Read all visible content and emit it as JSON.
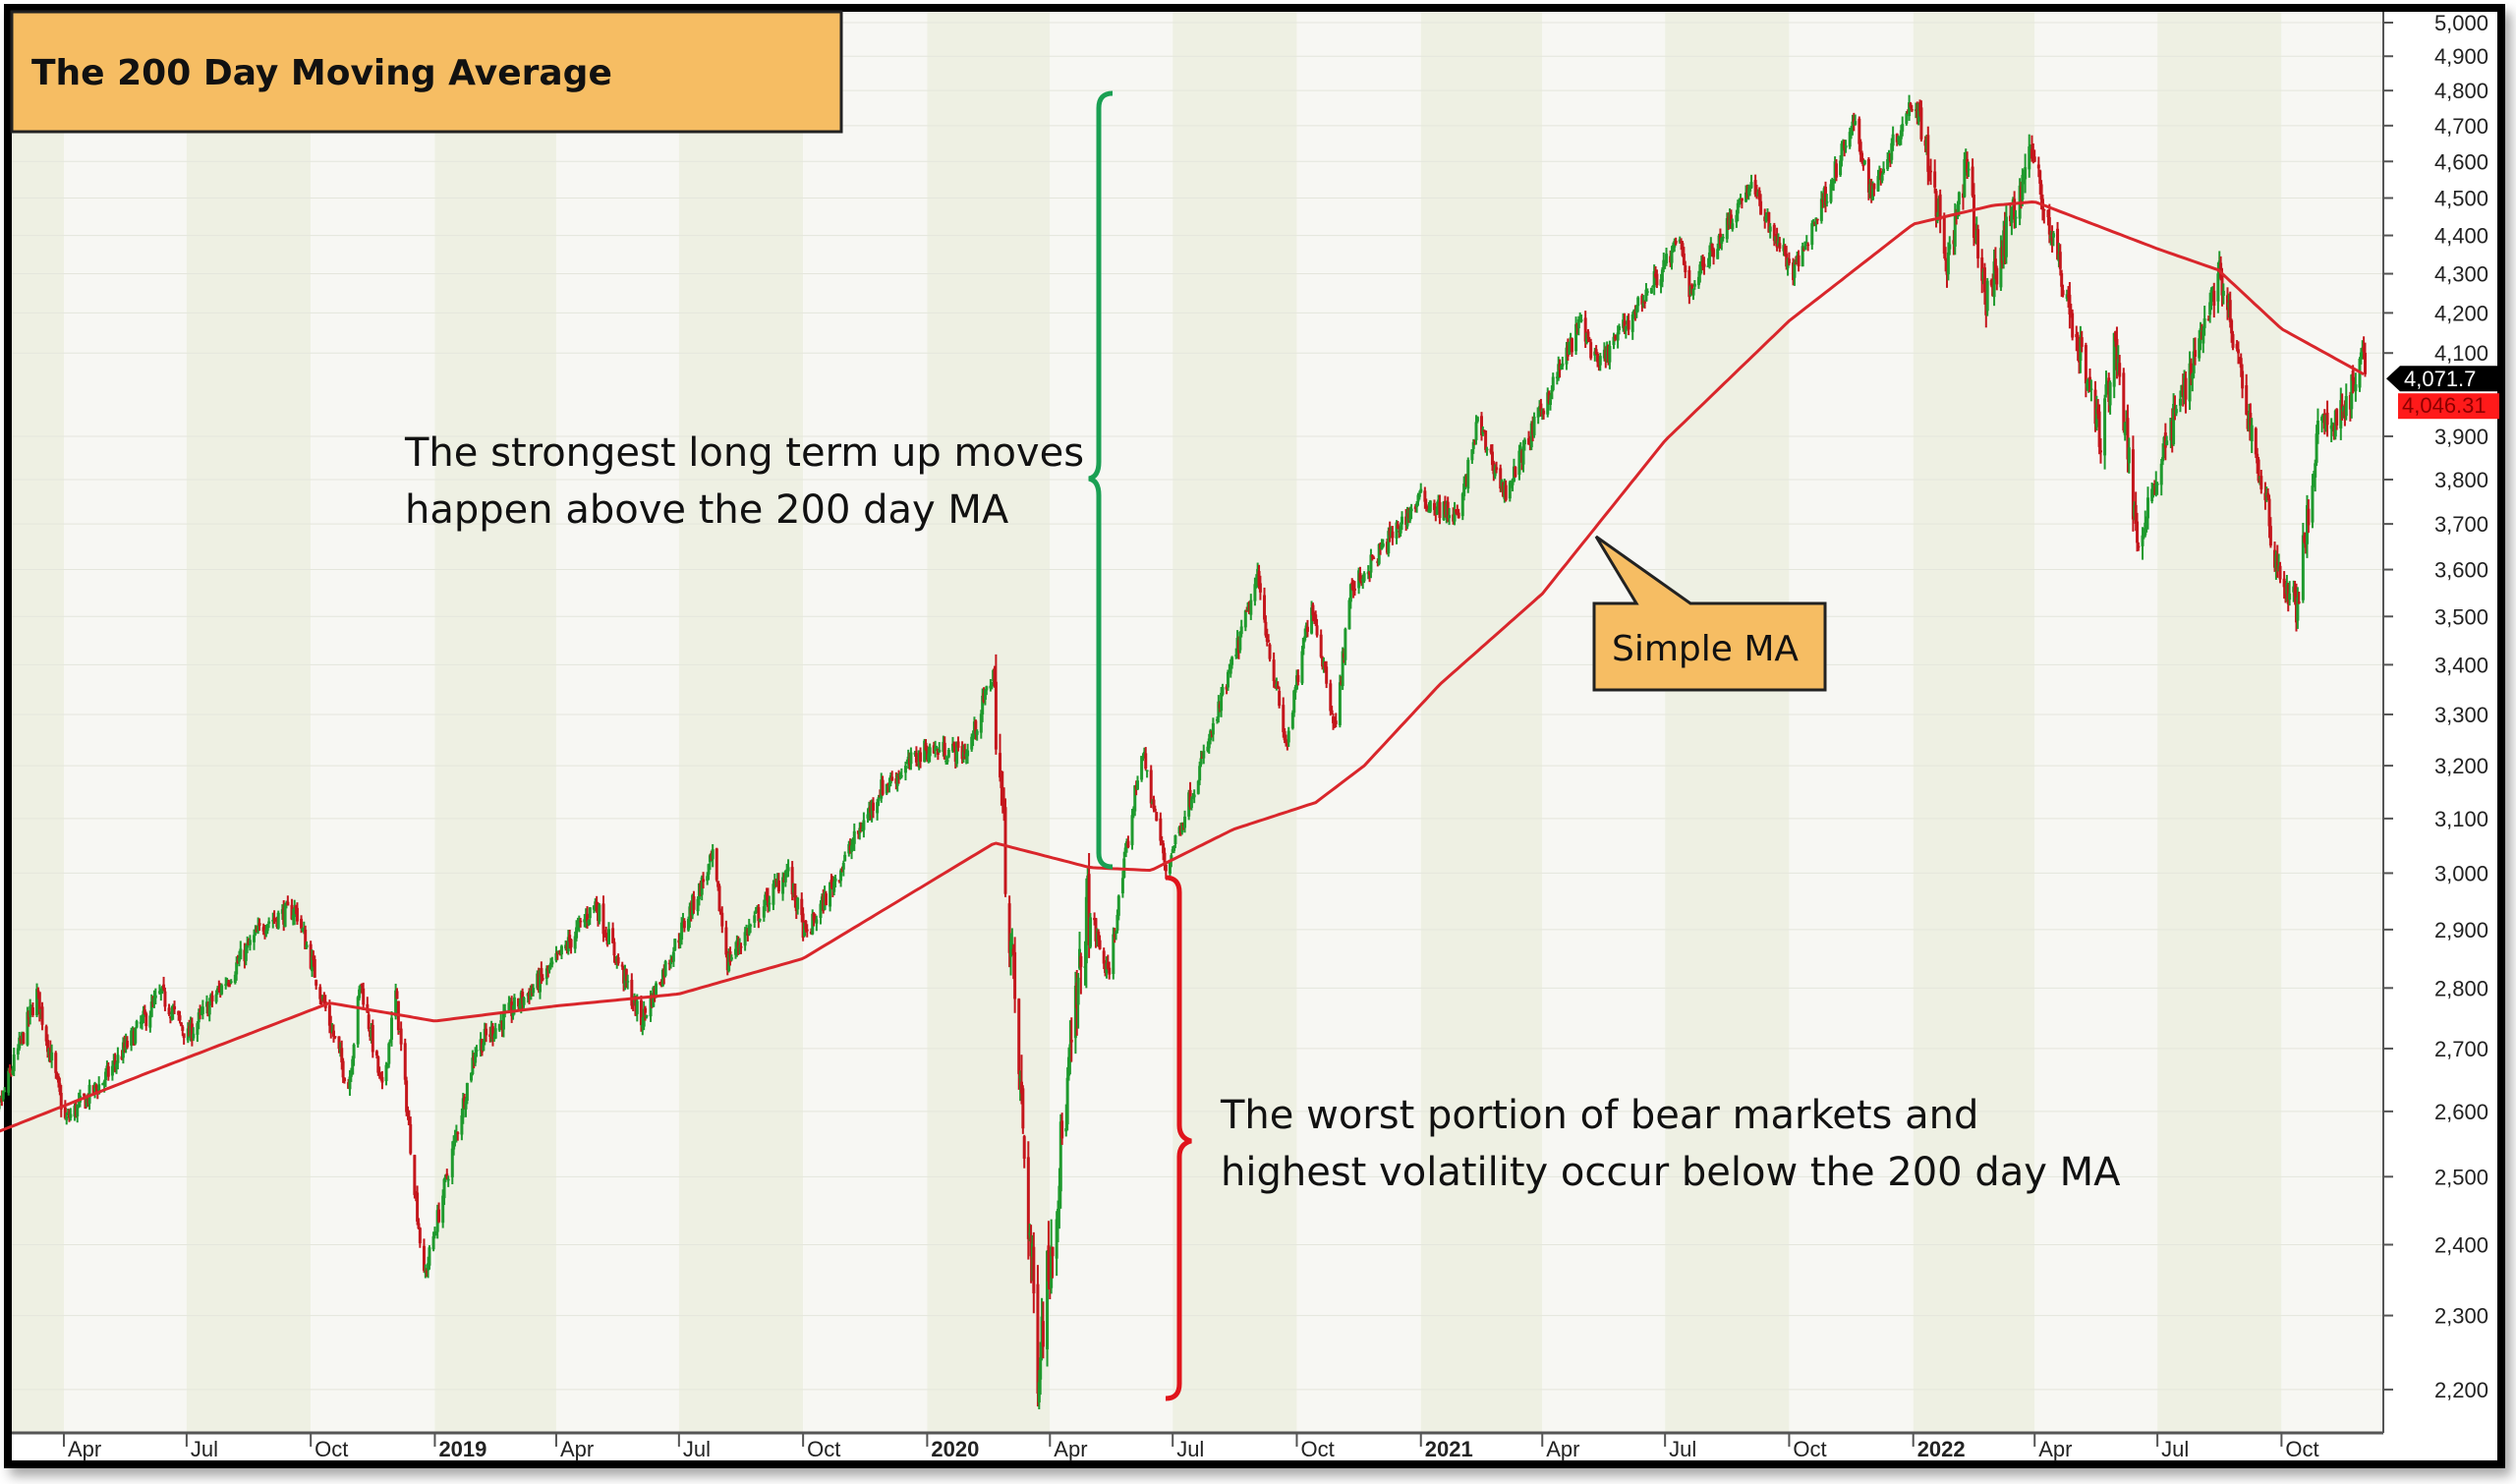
{
  "chart_data": {
    "type": "line",
    "subtype": "ohlc-candles-with-moving-average",
    "title": "The 200 Day Moving Average",
    "yscale": "log",
    "ylim": [
      2150,
      5000
    ],
    "yticks": [
      5000,
      4900,
      4800,
      4700,
      4600,
      4500,
      4400,
      4300,
      4200,
      4100,
      3900,
      3800,
      3700,
      3600,
      3500,
      3400,
      3300,
      3200,
      3100,
      3000,
      2900,
      2800,
      2700,
      2600,
      2500,
      2400,
      2300,
      2200
    ],
    "xlim": [
      "2018-02-01",
      "2022-12-10"
    ],
    "xticks": [
      {
        "date": "2018-04-01",
        "label": "Apr",
        "year": false
      },
      {
        "date": "2018-07-01",
        "label": "Jul",
        "year": false
      },
      {
        "date": "2018-10-01",
        "label": "Oct",
        "year": false
      },
      {
        "date": "2019-01-01",
        "label": "2019",
        "year": true
      },
      {
        "date": "2019-04-01",
        "label": "Apr",
        "year": false
      },
      {
        "date": "2019-07-01",
        "label": "Jul",
        "year": false
      },
      {
        "date": "2019-10-01",
        "label": "Oct",
        "year": false
      },
      {
        "date": "2020-01-01",
        "label": "2020",
        "year": true
      },
      {
        "date": "2020-04-01",
        "label": "Apr",
        "year": false
      },
      {
        "date": "2020-07-01",
        "label": "Jul",
        "year": false
      },
      {
        "date": "2020-10-01",
        "label": "Oct",
        "year": false
      },
      {
        "date": "2021-01-01",
        "label": "2021",
        "year": true
      },
      {
        "date": "2021-04-01",
        "label": "Apr",
        "year": false
      },
      {
        "date": "2021-07-01",
        "label": "Jul",
        "year": false
      },
      {
        "date": "2021-10-01",
        "label": "Oct",
        "year": false
      },
      {
        "date": "2022-01-01",
        "label": "2022",
        "year": true
      },
      {
        "date": "2022-04-01",
        "label": "Apr",
        "year": false
      },
      {
        "date": "2022-07-01",
        "label": "Jul",
        "year": false
      },
      {
        "date": "2022-10-01",
        "label": "Oct",
        "year": false
      }
    ],
    "series": [
      {
        "name": "Price",
        "kind": "ohlc",
        "up_color": "#1f9a2e",
        "down_color": "#c4161c",
        "points": [
          [
            "2018-02-01",
            2775
          ],
          [
            "2018-02-08",
            2580
          ],
          [
            "2018-03-12",
            2790
          ],
          [
            "2018-04-02",
            2585
          ],
          [
            "2018-05-01",
            2650
          ],
          [
            "2018-06-12",
            2790
          ],
          [
            "2018-07-02",
            2720
          ],
          [
            "2018-08-29",
            2915
          ],
          [
            "2018-09-20",
            2935
          ],
          [
            "2018-10-29",
            2640
          ],
          [
            "2018-11-07",
            2810
          ],
          [
            "2018-11-23",
            2630
          ],
          [
            "2018-12-03",
            2790
          ],
          [
            "2018-12-24",
            2350
          ],
          [
            "2019-01-31",
            2700
          ],
          [
            "2019-03-29",
            2834
          ],
          [
            "2019-04-30",
            2946
          ],
          [
            "2019-06-03",
            2744
          ],
          [
            "2019-07-26",
            3025
          ],
          [
            "2019-08-06",
            2845
          ],
          [
            "2019-09-19",
            3006
          ],
          [
            "2019-10-03",
            2887
          ],
          [
            "2019-11-27",
            3154
          ],
          [
            "2019-12-31",
            3231
          ],
          [
            "2020-01-31",
            3226
          ],
          [
            "2020-02-19",
            3386
          ],
          [
            "2020-03-23",
            2237
          ],
          [
            "2020-04-29",
            2940
          ],
          [
            "2020-05-14",
            2820
          ],
          [
            "2020-06-08",
            3232
          ],
          [
            "2020-06-26",
            3009
          ],
          [
            "2020-07-31",
            3271
          ],
          [
            "2020-09-02",
            3580
          ],
          [
            "2020-09-23",
            3237
          ],
          [
            "2020-10-12",
            3534
          ],
          [
            "2020-10-30",
            3270
          ],
          [
            "2020-11-09",
            3550
          ],
          [
            "2020-12-31",
            3756
          ],
          [
            "2021-01-29",
            3714
          ],
          [
            "2021-02-12",
            3934
          ],
          [
            "2021-03-04",
            3768
          ],
          [
            "2021-04-30",
            4181
          ],
          [
            "2021-05-12",
            4063
          ],
          [
            "2021-07-12",
            4384
          ],
          [
            "2021-07-19",
            4258
          ],
          [
            "2021-09-02",
            4537
          ],
          [
            "2021-10-04",
            4300
          ],
          [
            "2021-11-18",
            4704
          ],
          [
            "2021-12-01",
            4513
          ],
          [
            "2022-01-03",
            4796
          ],
          [
            "2022-01-27",
            4326
          ],
          [
            "2022-02-09",
            4587
          ],
          [
            "2022-02-24",
            4225
          ],
          [
            "2022-03-29",
            4631
          ],
          [
            "2022-05-20",
            3900
          ],
          [
            "2022-05-31",
            4132
          ],
          [
            "2022-06-16",
            3666
          ],
          [
            "2022-08-16",
            4305
          ],
          [
            "2022-09-30",
            3585
          ],
          [
            "2022-10-12",
            3520
          ],
          [
            "2022-10-28",
            3901
          ],
          [
            "2022-11-14",
            3957
          ],
          [
            "2022-12-01",
            4076
          ],
          [
            "2022-12-02",
            4071.7
          ]
        ]
      },
      {
        "name": "200 Day Simple MA",
        "kind": "line",
        "color": "#d9262b",
        "points": [
          [
            "2018-02-01",
            2560
          ],
          [
            "2018-06-01",
            2660
          ],
          [
            "2018-10-15",
            2775
          ],
          [
            "2019-01-01",
            2745
          ],
          [
            "2019-04-01",
            2770
          ],
          [
            "2019-07-01",
            2790
          ],
          [
            "2019-10-01",
            2850
          ],
          [
            "2020-02-20",
            3055
          ],
          [
            "2020-05-01",
            3010
          ],
          [
            "2020-06-15",
            3005
          ],
          [
            "2020-08-15",
            3080
          ],
          [
            "2020-10-15",
            3130
          ],
          [
            "2020-11-20",
            3200
          ],
          [
            "2021-01-15",
            3360
          ],
          [
            "2021-04-01",
            3548
          ],
          [
            "2021-07-01",
            3890
          ],
          [
            "2021-10-01",
            4180
          ],
          [
            "2022-01-01",
            4430
          ],
          [
            "2022-03-01",
            4480
          ],
          [
            "2022-04-01",
            4490
          ],
          [
            "2022-07-01",
            4365
          ],
          [
            "2022-08-15",
            4310
          ],
          [
            "2022-10-01",
            4160
          ],
          [
            "2022-12-02",
            4046.31
          ]
        ]
      }
    ],
    "last_price_label": "4,071.7",
    "ma_value_label": "4,046.31",
    "annotations": {
      "above_text": [
        "The strongest long term up moves",
        "happen above the 200 day MA"
      ],
      "below_text": [
        "The worst portion of bear markets and",
        "highest volatility occur below the 200 day MA"
      ],
      "callout": "Simple MA",
      "above_color": "#1aa053",
      "below_color": "#e0141b",
      "callout_color": "#f6bd63"
    }
  }
}
